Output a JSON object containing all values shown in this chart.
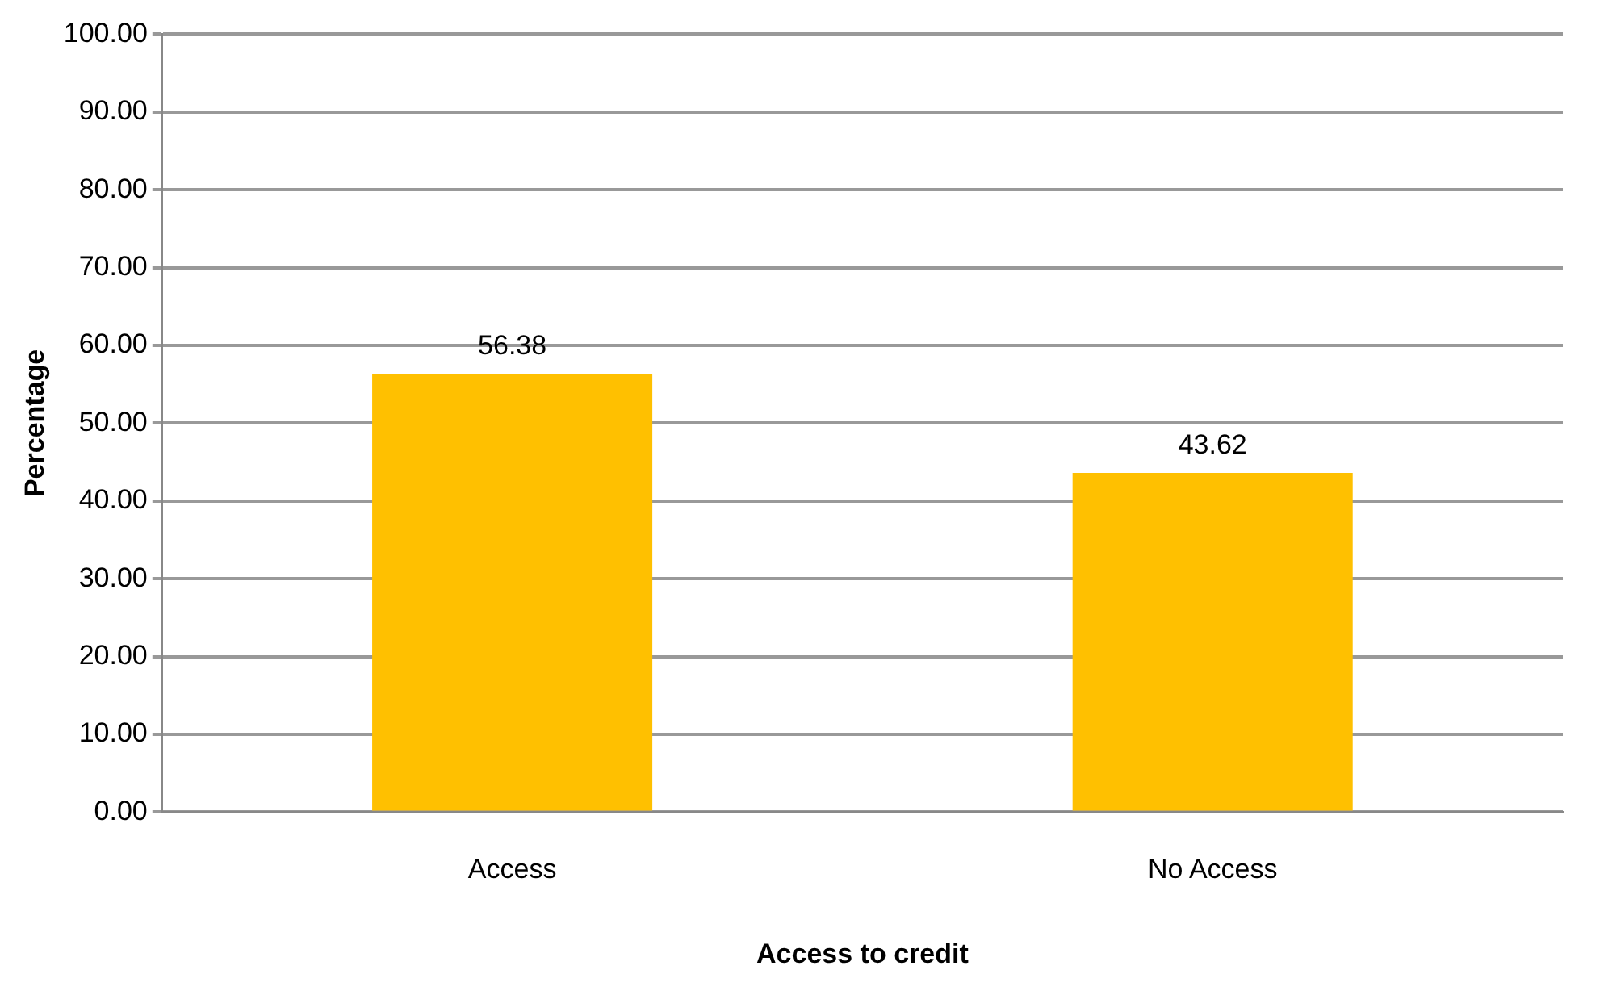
{
  "chart_data": {
    "type": "bar",
    "xlabel": "Access to credit",
    "ylabel": "Percentage",
    "categories": [
      "Access",
      "No Access"
    ],
    "values": [
      56.38,
      43.62
    ],
    "color": "#ffc000",
    "ylim": [
      0,
      100
    ],
    "yticks": [
      {
        "value": 0,
        "label": "0.00"
      },
      {
        "value": 10,
        "label": "10.00"
      },
      {
        "value": 20,
        "label": "20.00"
      },
      {
        "value": 30,
        "label": "30.00"
      },
      {
        "value": 40,
        "label": "40.00"
      },
      {
        "value": 50,
        "label": "50.00"
      },
      {
        "value": 60,
        "label": "60.00"
      },
      {
        "value": 70,
        "label": "70.00"
      },
      {
        "value": 80,
        "label": "80.00"
      },
      {
        "value": 90,
        "label": "90.00"
      },
      {
        "value": 100,
        "label": "100.00"
      }
    ],
    "grid": "y",
    "data_labels": true
  }
}
